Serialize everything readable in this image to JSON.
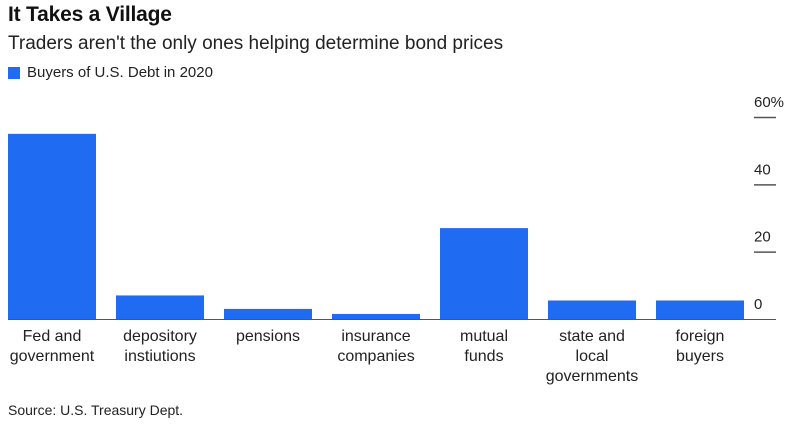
{
  "chart_data": {
    "type": "bar",
    "title": "It Takes a Village",
    "subtitle": "Traders aren't the only ones helping determine bond prices",
    "categories": [
      "Fed and\ngovernment",
      "depository\ninstiutions",
      "pensions",
      "insurance\ncompanies",
      "mutual\nfunds",
      "state and\nlocal\ngovernments",
      "foreign\nbuyers"
    ],
    "series": [
      {
        "name": "Buyers of U.S. Debt in 2020",
        "values": [
          55,
          7,
          3,
          1.5,
          27,
          5.5,
          5.5
        ]
      }
    ],
    "ylim": [
      0,
      60
    ],
    "yticks": [
      0,
      20,
      40,
      60
    ],
    "ytick_labels": [
      "0",
      "20",
      "40",
      "60%"
    ],
    "axis_side": "right",
    "grid": false,
    "legend_position": "top-left",
    "colors": {
      "bar": "#1f6cf2",
      "tick": "#555555"
    },
    "source": "Source: U.S. Treasury Dept."
  }
}
